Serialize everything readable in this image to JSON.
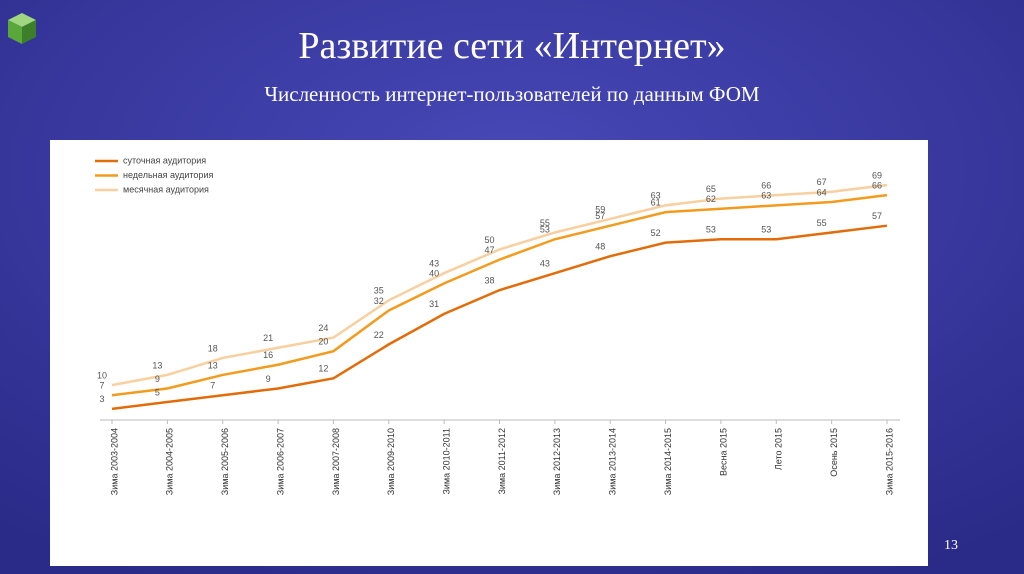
{
  "chart_data": {
    "type": "line",
    "title": "Развитие сети «Интернет»",
    "subtitle": "Численность интернет-пользователей по данным ФОМ",
    "categories": [
      "Зима 2003-2004",
      "Зима 2004-2005",
      "Зима 2005-2006",
      "Зима 2006-2007",
      "Зима 2007-2008",
      "Зима 2009-2010",
      "Зима 2010-2011",
      "Зима 2011-2012",
      "Зима 2012-2013",
      "Зима 2013-2014",
      "Зима 2014-2015",
      "Весна 2015",
      "Лето 2015",
      "Осень 2015",
      "Зима 2015-2016"
    ],
    "series": [
      {
        "name": "суточная аудитория",
        "color": "#e36c0a",
        "values": [
          3,
          5,
          7,
          9,
          12,
          22,
          31,
          38,
          43,
          48,
          52,
          53,
          53,
          55,
          57
        ]
      },
      {
        "name": "недельная аудитория",
        "color": "#f29b1d",
        "values": [
          7,
          9,
          13,
          16,
          20,
          32,
          40,
          47,
          53,
          57,
          61,
          62,
          63,
          64,
          66
        ]
      },
      {
        "name": "месячная аудитория",
        "color": "#f8cf9f",
        "values": [
          10,
          13,
          18,
          21,
          24,
          35,
          43,
          50,
          55,
          59,
          63,
          65,
          66,
          67,
          69
        ]
      }
    ],
    "legend": "top-left"
  },
  "page_number": "13"
}
